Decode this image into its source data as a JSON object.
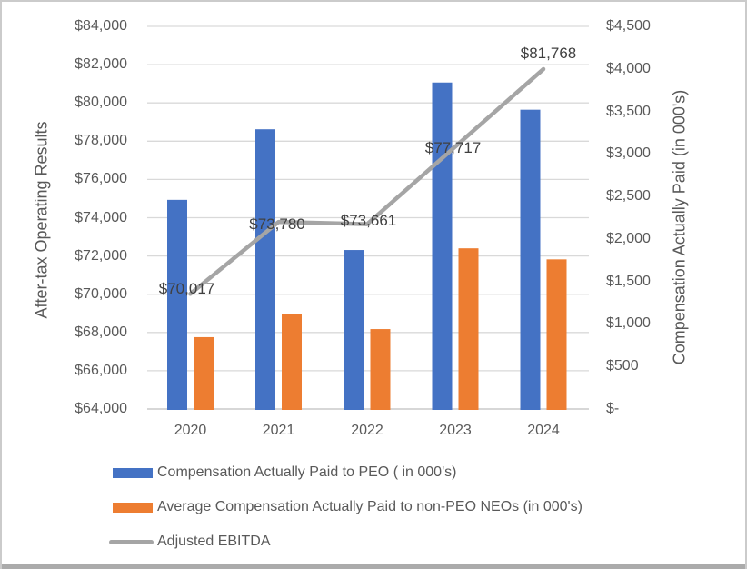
{
  "window": {
    "background": "#ffffff",
    "border_color": "#cbcbcb",
    "bottom_edge_color": "#ababab"
  },
  "chart_data": {
    "type": "combo",
    "categories": [
      "2020",
      "2021",
      "2022",
      "2023",
      "2024"
    ],
    "series": [
      {
        "name": "Compensation Actually Paid to PEO ( in 000's)",
        "type": "bar",
        "axis": "right",
        "color": "#4472C4",
        "values": [
          2460,
          3290,
          1870,
          3840,
          3520
        ]
      },
      {
        "name": "Average Compensation Actually Paid to non-PEO NEOs (in 000's)",
        "type": "bar",
        "axis": "right",
        "color": "#ED7D31",
        "values": [
          845,
          1120,
          940,
          1890,
          1760
        ]
      },
      {
        "name": "Adjusted EBITDA",
        "type": "line",
        "axis": "left",
        "color": "#A5A5A5",
        "values": [
          70017,
          73780,
          73661,
          77717,
          81768
        ],
        "labels": [
          "$70,017",
          "$73,780",
          "$73,661",
          "$77,717",
          "$81,768"
        ]
      }
    ],
    "left_axis": {
      "title": "After-tax Operating Results",
      "min": 64000,
      "max": 84000,
      "step": 2000,
      "ticks": [
        "$84,000",
        "$82,000",
        "$80,000",
        "$78,000",
        "$76,000",
        "$74,000",
        "$72,000",
        "$70,000",
        "$68,000",
        "$66,000",
        "$64,000"
      ]
    },
    "right_axis": {
      "title": "Compensation Actually Paid (in 000's)",
      "min": 0,
      "max": 4500,
      "step": 500,
      "ticks": [
        "$4,500",
        "$4,000",
        "$3,500",
        "$3,000",
        "$2,500",
        "$2,000",
        "$1,500",
        "$1,000",
        "$500",
        "$-"
      ]
    },
    "grid": true,
    "legend_position": "bottom-left",
    "colors": {
      "gridline": "#D9D9D9",
      "axis_line": "#BFBFBF",
      "tick_text": "#595959",
      "data_label_text": "#404040"
    }
  }
}
